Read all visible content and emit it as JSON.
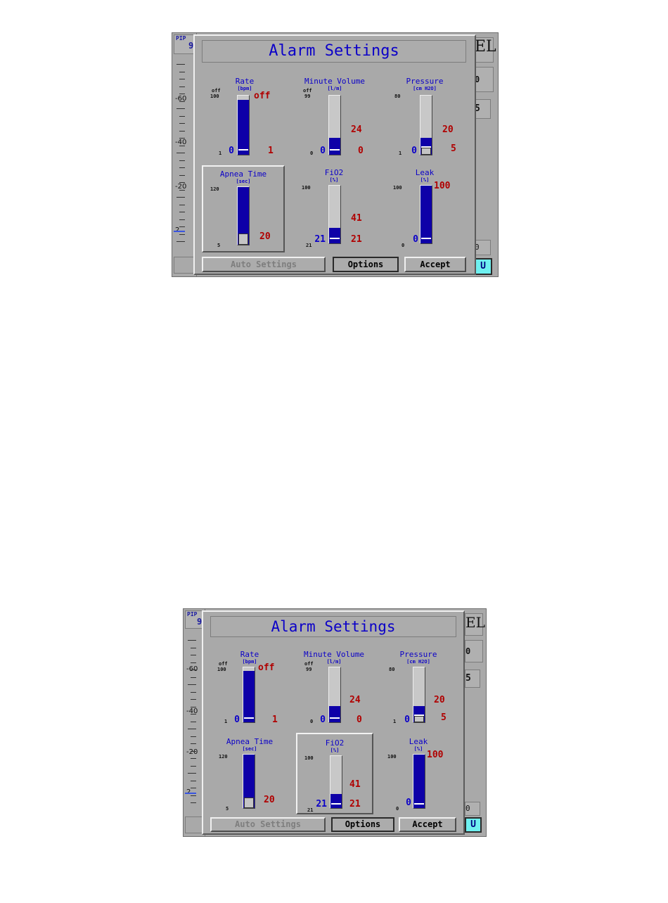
{
  "screens": [
    {
      "behind": {
        "pip_label": "PIP",
        "pip_value": "9",
        "scale_labels": [
          "-60",
          "-40",
          "-20",
          "2"
        ],
        "right_partial": [
          "EL",
          "0",
          "5",
          "0",
          "U"
        ]
      },
      "dialog": {
        "title": "Alarm Settings",
        "selected_panel": "apnea_time",
        "panels": {
          "rate": {
            "title": "Rate",
            "unit": "[bpm]",
            "top_off": "off",
            "top_max": "100",
            "bottom_min": "1",
            "current": "0",
            "upper": "off",
            "lower": "1",
            "fill": 0.93,
            "marks": [
              0.07
            ],
            "handle": null
          },
          "minute_volume": {
            "title": "Minute Volume",
            "unit": "[l/m]",
            "top_off": "off",
            "top_max": "99",
            "bottom_min": "0",
            "current": "0",
            "upper": "24",
            "lower": "0",
            "fill": 0.29,
            "marks": [
              0.07
            ],
            "handle": null
          },
          "pressure": {
            "title": "Pressure",
            "unit": "[cm H2O]",
            "top_off": "",
            "top_max": "80",
            "bottom_min": "1",
            "current": "0",
            "upper": "20",
            "lower": "5",
            "fill": 0.29,
            "marks": [
              0.12
            ],
            "handle": [
              0.0,
              0.12
            ]
          },
          "apnea_time": {
            "title": "Apnea Time",
            "unit": "[sec]",
            "top_off": "",
            "top_max": "120",
            "bottom_min": "5",
            "current": "",
            "upper": "20",
            "lower": "",
            "fill": 1.0,
            "marks": [],
            "handle": [
              0.0,
              0.2
            ]
          },
          "fio2": {
            "title": "FiO2",
            "unit": "[%]",
            "top_off": "",
            "top_max": "100",
            "bottom_min": "21",
            "current": "21",
            "upper": "41",
            "lower": "21",
            "fill": 0.27,
            "marks": [
              0.07
            ],
            "handle": null
          },
          "leak": {
            "title": "Leak",
            "unit": "[%]",
            "top_off": "",
            "top_max": "100",
            "bottom_min": "0",
            "current": "0",
            "upper": "100",
            "lower": "",
            "fill": 1.0,
            "marks": [
              0.07
            ],
            "handle": null
          }
        },
        "buttons": {
          "auto": "Auto Settings",
          "options": "Options",
          "accept": "Accept"
        }
      }
    },
    {
      "behind": {
        "pip_label": "PIP",
        "pip_value": "9",
        "scale_labels": [
          "-60",
          "-40",
          "-20",
          "2"
        ],
        "right_partial": [
          "EL",
          "0",
          "5",
          "0",
          "U"
        ]
      },
      "dialog": {
        "title": "Alarm Settings",
        "selected_panel": "fio2",
        "panels": {
          "rate": {
            "title": "Rate",
            "unit": "[bpm]",
            "top_off": "off",
            "top_max": "100",
            "bottom_min": "1",
            "current": "0",
            "upper": "off",
            "lower": "1",
            "fill": 0.93,
            "marks": [
              0.07
            ],
            "handle": null
          },
          "minute_volume": {
            "title": "Minute Volume",
            "unit": "[l/m]",
            "top_off": "off",
            "top_max": "99",
            "bottom_min": "0",
            "current": "0",
            "upper": "24",
            "lower": "0",
            "fill": 0.29,
            "marks": [
              0.07
            ],
            "handle": null
          },
          "pressure": {
            "title": "Pressure",
            "unit": "[cm H2O]",
            "top_off": "",
            "top_max": "80",
            "bottom_min": "1",
            "current": "0",
            "upper": "20",
            "lower": "5",
            "fill": 0.29,
            "marks": [
              0.12
            ],
            "handle": [
              0.0,
              0.12
            ]
          },
          "apnea_time": {
            "title": "Apnea Time",
            "unit": "[sec]",
            "top_off": "",
            "top_max": "120",
            "bottom_min": "5",
            "current": "",
            "upper": "20",
            "lower": "",
            "fill": 1.0,
            "marks": [],
            "handle": [
              0.0,
              0.2
            ]
          },
          "fio2": {
            "title": "FiO2",
            "unit": "[%]",
            "top_off": "",
            "top_max": "100",
            "bottom_min": "21",
            "current": "21",
            "upper": "41",
            "lower": "21",
            "fill": 0.27,
            "marks": [
              0.07
            ],
            "handle": null
          },
          "leak": {
            "title": "Leak",
            "unit": "[%]",
            "top_off": "",
            "top_max": "100",
            "bottom_min": "0",
            "current": "0",
            "upper": "100",
            "lower": "",
            "fill": 1.0,
            "marks": [
              0.07
            ],
            "handle": null
          }
        },
        "buttons": {
          "auto": "Auto Settings",
          "options": "Options",
          "accept": "Accept"
        }
      }
    }
  ],
  "colors": {
    "dialog_bg": "#a9a9a9",
    "bar_fill": "#0e00a8",
    "label_blue": "#0b00c8",
    "limit_red": "#b00000",
    "highlight_cyan": "#6ef0f0"
  }
}
